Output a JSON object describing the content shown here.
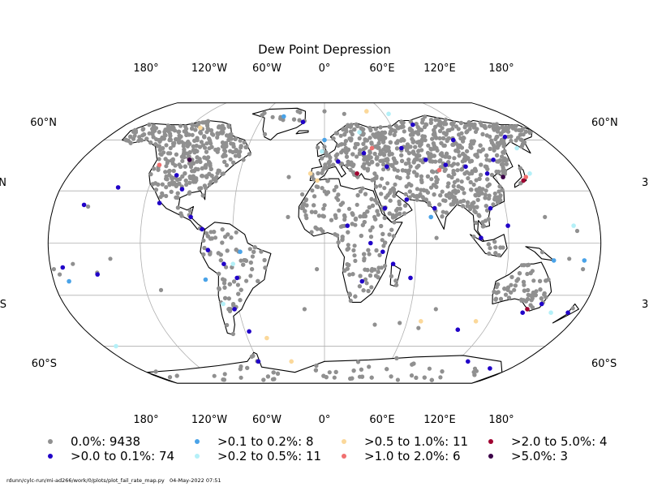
{
  "chart_data": {
    "type": "scatter",
    "title": "Dew Point Depression",
    "projection": "robinson",
    "top_lon_ticks": [
      "180°",
      "120°W",
      "60°W",
      "0°",
      "60°E",
      "120°E",
      "180°"
    ],
    "bottom_lon_ticks": [
      "180°",
      "120°W",
      "60°W",
      "0°",
      "60°E",
      "120°E",
      "180°"
    ],
    "lat_ticks_left": [
      "60°N",
      "N",
      "S",
      "60°S"
    ],
    "lat_ticks_right": [
      "60°N",
      "3",
      "3",
      "60°S"
    ],
    "grid": true,
    "legend": [
      {
        "label": "0.0%: 9438",
        "color": "#909090"
      },
      {
        "label": ">0.0 to 0.1%: 74",
        "color": "#2000c8"
      },
      {
        "label": ">0.1 to 0.2%: 8",
        "color": "#4aa3e8"
      },
      {
        "label": ">0.2 to 0.5%: 11",
        "color": "#b4f0f8"
      },
      {
        "label": ">0.5 to 1.0%: 11",
        "color": "#fbd89a"
      },
      {
        "label": ">1.0 to 2.0%: 6",
        "color": "#f07070"
      },
      {
        "label": ">2.0 to 5.0%: 4",
        "color": "#a00030"
      },
      {
        "label": ">5.0%: 3",
        "color": "#3a0048"
      }
    ],
    "legend_placement": "bottom",
    "highlighted_stations": [
      {
        "lon": -104,
        "lat": 39,
        "cat": 1
      },
      {
        "lon": -97,
        "lat": 31,
        "cat": 1
      },
      {
        "lon": -88,
        "lat": 15,
        "cat": 1
      },
      {
        "lon": -80,
        "lat": 8,
        "cat": 1
      },
      {
        "lon": -76,
        "lat": -4,
        "cat": 1
      },
      {
        "lon": -66,
        "lat": -12,
        "cat": 1
      },
      {
        "lon": -58,
        "lat": -20,
        "cat": 1
      },
      {
        "lon": -63,
        "lat": -38,
        "cat": 1
      },
      {
        "lon": -57,
        "lat": -51,
        "cat": 1
      },
      {
        "lon": -141,
        "lat": 32,
        "cat": 1
      },
      {
        "lon": -160,
        "lat": 22,
        "cat": 1
      },
      {
        "lon": -172,
        "lat": -14,
        "cat": 1
      },
      {
        "lon": -150,
        "lat": -18,
        "cat": 1
      },
      {
        "lon": -110,
        "lat": 23,
        "cat": 1
      },
      {
        "lon": 10,
        "lat": 47,
        "cat": 1
      },
      {
        "lon": 30,
        "lat": 52,
        "cat": 1
      },
      {
        "lon": 45,
        "lat": 44,
        "cat": 1
      },
      {
        "lon": 60,
        "lat": 55,
        "cat": 1
      },
      {
        "lon": 75,
        "lat": 48,
        "cat": 1
      },
      {
        "lon": 88,
        "lat": 45,
        "cat": 1
      },
      {
        "lon": 102,
        "lat": 44,
        "cat": 1
      },
      {
        "lon": 115,
        "lat": 40,
        "cat": 1
      },
      {
        "lon": 125,
        "lat": 48,
        "cat": 1
      },
      {
        "lon": 105,
        "lat": 60,
        "cat": 1
      },
      {
        "lon": 80,
        "lat": 70,
        "cat": 1
      },
      {
        "lon": 150,
        "lat": 62,
        "cat": 1
      },
      {
        "lon": 40,
        "lat": 20,
        "cat": 1
      },
      {
        "lon": 55,
        "lat": 25,
        "cat": 1
      },
      {
        "lon": 73,
        "lat": 20,
        "cat": 1
      },
      {
        "lon": 110,
        "lat": 20,
        "cat": 1
      },
      {
        "lon": 120,
        "lat": 10,
        "cat": 1
      },
      {
        "lon": 102,
        "lat": 3,
        "cat": 1
      },
      {
        "lon": 15,
        "lat": 10,
        "cat": 1
      },
      {
        "lon": 30,
        "lat": 0,
        "cat": 1
      },
      {
        "lon": 38,
        "lat": -5,
        "cat": 1
      },
      {
        "lon": 45,
        "lat": -12,
        "cat": 1
      },
      {
        "lon": 25,
        "lat": -22,
        "cat": 1
      },
      {
        "lon": 57,
        "lat": -20,
        "cat": 1
      },
      {
        "lon": 140,
        "lat": -40,
        "cat": 1
      },
      {
        "lon": 150,
        "lat": -35,
        "cat": 1
      },
      {
        "lon": 172,
        "lat": -40,
        "cat": 1
      },
      {
        "lon": 100,
        "lat": -50,
        "cat": 1
      },
      {
        "lon": 130,
        "lat": -70,
        "cat": 1
      },
      {
        "lon": 160,
        "lat": -75,
        "cat": 1
      },
      {
        "lon": -60,
        "lat": -70,
        "cat": 1
      },
      {
        "lon": -20,
        "lat": 72,
        "cat": 1
      },
      {
        "lon": -40,
        "lat": 76,
        "cat": 2
      },
      {
        "lon": 150,
        "lat": -10,
        "cat": 2
      },
      {
        "lon": 170,
        "lat": -10,
        "cat": 2
      },
      {
        "lon": 70,
        "lat": 15,
        "cat": 2
      },
      {
        "lon": -79,
        "lat": -21,
        "cat": 2
      },
      {
        "lon": 0,
        "lat": 60,
        "cat": 2
      },
      {
        "lon": -170,
        "lat": -22,
        "cat": 2
      },
      {
        "lon": -55,
        "lat": -5,
        "cat": 2
      },
      {
        "lon": 145,
        "lat": 40,
        "cat": 3
      },
      {
        "lon": -170,
        "lat": -60,
        "cat": 3
      },
      {
        "lon": 163,
        "lat": 10,
        "cat": 3
      },
      {
        "lon": 160,
        "lat": -40,
        "cat": 3
      },
      {
        "lon": -2,
        "lat": 53,
        "cat": 3
      },
      {
        "lon": -60,
        "lat": -12,
        "cat": 3
      },
      {
        "lon": -70,
        "lat": -35,
        "cat": 3
      },
      {
        "lon": 30,
        "lat": 65,
        "cat": 3
      },
      {
        "lon": 150,
        "lat": 55,
        "cat": 3
      },
      {
        "lon": 65,
        "lat": 78,
        "cat": 3
      },
      {
        "lon": -10,
        "lat": 40,
        "cat": 4
      },
      {
        "lon": -5,
        "lat": 36,
        "cat": 4
      },
      {
        "lon": -110,
        "lat": 68,
        "cat": 4
      },
      {
        "lon": -45,
        "lat": -55,
        "cat": 4
      },
      {
        "lon": 70,
        "lat": -45,
        "cat": 4
      },
      {
        "lon": 110,
        "lat": -45,
        "cat": 4
      },
      {
        "lon": -30,
        "lat": -70,
        "cat": 4
      },
      {
        "lon": 44,
        "lat": 80,
        "cat": 4
      },
      {
        "lon": -120,
        "lat": 45,
        "cat": 5
      },
      {
        "lon": 141,
        "lat": 38,
        "cat": 5
      },
      {
        "lon": 37,
        "lat": 55,
        "cat": 5
      },
      {
        "lon": 82,
        "lat": 42,
        "cat": 5
      },
      {
        "lon": 142,
        "lat": -38,
        "cat": 6
      },
      {
        "lon": 23,
        "lat": 40,
        "cat": 6
      },
      {
        "lon": 138,
        "lat": 36,
        "cat": 6
      },
      {
        "lon": -100,
        "lat": 48,
        "cat": 7
      },
      {
        "lon": 125,
        "lat": 38,
        "cat": 7
      }
    ]
  },
  "footer": {
    "script_path": "rdunn/cylc-run/mi-ad266/work/0/plots/plot_fail_rate_map.py",
    "timestamp": "04-May-2022 07:51"
  }
}
